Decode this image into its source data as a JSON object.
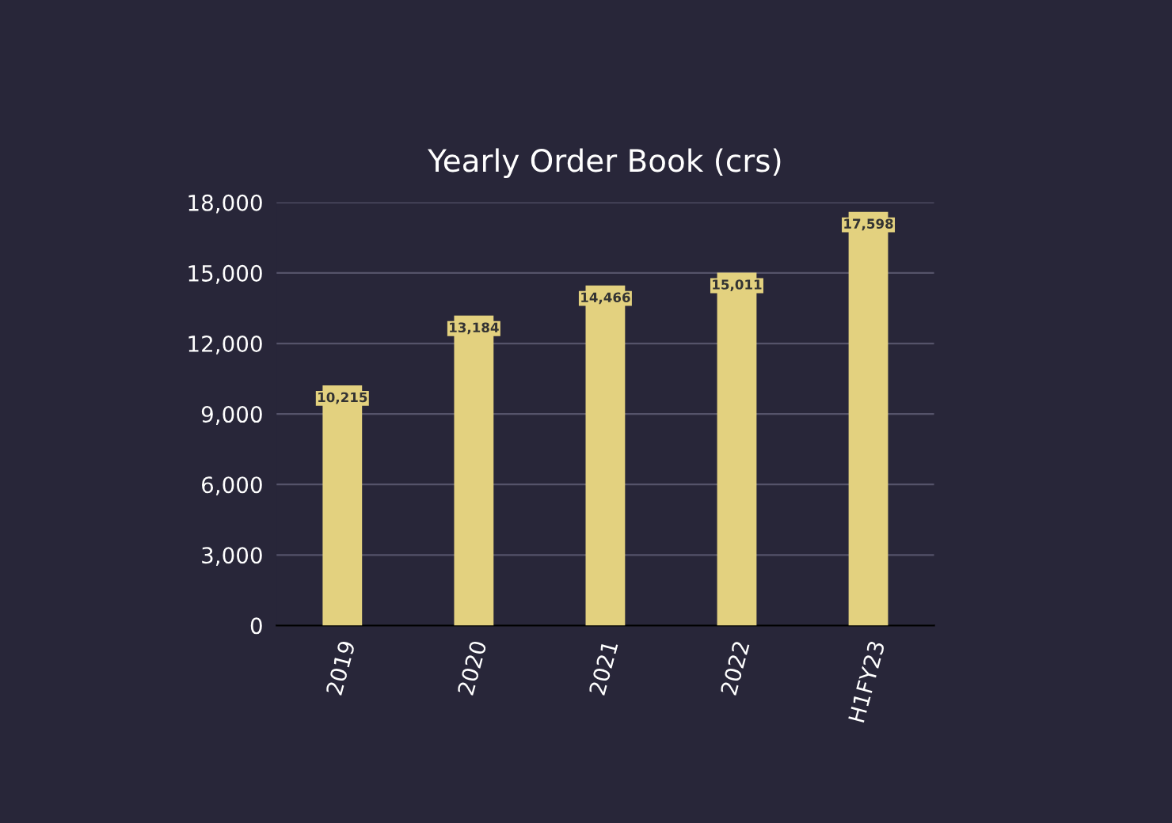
{
  "chart_data": {
    "type": "bar",
    "title": "Yearly Order Book (crs)",
    "categories": [
      "2019",
      "2020",
      "2021",
      "2022",
      "H1FY23"
    ],
    "values": [
      10215,
      13184,
      14466,
      15011,
      17598
    ],
    "value_labels": [
      "10,215",
      "13,184",
      "14,466",
      "15,011",
      "17,598"
    ],
    "color": "#e3d17f",
    "ylim": [
      0,
      18000
    ],
    "yticks": [
      {
        "value": 0,
        "label": "0"
      },
      {
        "value": 3000,
        "label": "3,000"
      },
      {
        "value": 6000,
        "label": "6,000"
      },
      {
        "value": 9000,
        "label": "9,000"
      },
      {
        "value": 12000,
        "label": "12,000"
      },
      {
        "value": 15000,
        "label": "15,000"
      },
      {
        "value": 18000,
        "label": "18,000"
      }
    ],
    "grid": "y",
    "legend": false
  }
}
